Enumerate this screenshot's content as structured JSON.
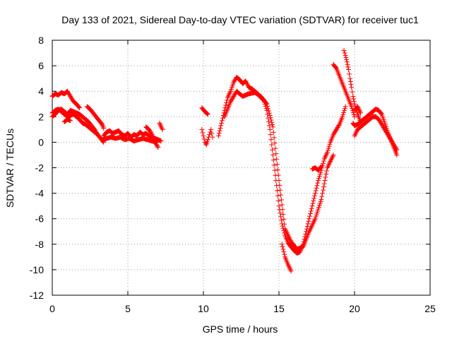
{
  "chart_data": {
    "type": "scatter",
    "title": "Day 133 of 2021, Sidereal Day-to-day VTEC variation (SDTVAR) for receiver tuc1",
    "xlabel": "GPS time / hours",
    "ylabel": "SDTVAR / TECUs",
    "xlim": [
      0,
      25
    ],
    "ylim": [
      -12,
      8
    ],
    "xticks": [
      0,
      5,
      10,
      15,
      20,
      25
    ],
    "yticks": [
      -12,
      -10,
      -8,
      -6,
      -4,
      -2,
      0,
      2,
      4,
      6,
      8
    ],
    "grid": true,
    "marker": "+",
    "series": [
      {
        "name": "SDTVAR",
        "color": "#ff0000",
        "segments": [
          {
            "x": [
              0.0,
              0.2,
              0.4,
              0.6,
              0.8,
              1.0,
              1.2,
              1.4,
              1.6,
              1.8
            ],
            "y": [
              3.6,
              3.8,
              3.7,
              3.9,
              3.8,
              4.0,
              3.6,
              3.2,
              3.0,
              2.7
            ]
          },
          {
            "x": [
              0.0,
              0.2,
              0.4,
              0.6,
              0.8,
              1.0,
              1.2,
              1.4,
              1.6,
              1.8,
              2.0,
              2.2,
              2.4,
              2.6,
              2.8,
              3.0,
              3.2,
              3.4
            ],
            "y": [
              2.0,
              2.2,
              2.5,
              2.6,
              2.4,
              2.2,
              2.5,
              2.4,
              2.3,
              2.2,
              2.0,
              1.8,
              1.6,
              1.3,
              1.0,
              0.6,
              0.3,
              0.0
            ]
          },
          {
            "x": [
              0.0,
              0.2,
              0.4,
              0.6,
              0.8,
              1.0,
              1.2,
              1.4,
              1.6,
              1.8,
              2.0,
              2.2,
              2.4,
              2.6,
              2.8,
              3.0
            ],
            "y": [
              2.3,
              2.5,
              2.6,
              2.4,
              2.2,
              2.0,
              2.1,
              2.2,
              2.0,
              1.8,
              1.5,
              1.4,
              1.2,
              1.0,
              0.8,
              0.6
            ]
          },
          {
            "x": [
              0.8,
              1.0,
              1.2
            ],
            "y": [
              1.6,
              1.8,
              1.7
            ]
          },
          {
            "x": [
              2.3,
              2.5,
              2.7,
              2.9,
              3.1,
              3.3,
              3.4
            ],
            "y": [
              2.8,
              2.6,
              2.3,
              2.0,
              1.7,
              1.4,
              1.1
            ]
          },
          {
            "x": [
              3.4,
              3.6,
              3.8,
              4.0,
              4.2,
              4.4,
              4.6,
              4.8,
              5.0,
              5.2,
              5.4,
              5.6,
              5.8,
              6.0,
              6.2,
              6.4,
              6.6,
              6.8,
              7.0,
              7.2
            ],
            "y": [
              0.5,
              0.8,
              0.9,
              0.7,
              0.8,
              0.9,
              0.6,
              0.5,
              0.7,
              0.4,
              0.6,
              0.5,
              0.8,
              0.6,
              0.7,
              0.5,
              0.4,
              0.3,
              0.2,
              0.1
            ]
          },
          {
            "x": [
              3.3,
              3.6,
              3.9,
              4.2,
              4.5,
              4.8,
              5.1,
              5.4,
              5.7,
              6.0,
              6.3,
              6.6,
              6.9
            ],
            "y": [
              0.2,
              0.3,
              0.4,
              0.3,
              0.4,
              0.2,
              0.3,
              0.1,
              0.2,
              0.3,
              0.2,
              0.1,
              0.0
            ]
          },
          {
            "x": [
              6.2,
              6.4,
              6.6,
              6.8,
              7.0
            ],
            "y": [
              1.2,
              1.0,
              0.6,
              0.0,
              -0.4
            ]
          },
          {
            "x": [
              7.1,
              7.2,
              7.3
            ],
            "y": [
              1.5,
              1.2,
              1.0
            ]
          },
          {
            "x": [
              9.9,
              10.1,
              10.3
            ],
            "y": [
              2.7,
              2.4,
              2.2
            ]
          },
          {
            "x": [
              9.9,
              10.0,
              10.1,
              10.2,
              10.3,
              10.4,
              10.5,
              10.6
            ],
            "y": [
              1.0,
              0.5,
              0.0,
              -0.2,
              0.2,
              0.6,
              1.0,
              0.4
            ]
          },
          {
            "x": [
              11.0,
              11.2,
              11.4,
              11.6,
              11.8,
              12.0,
              12.2,
              12.4,
              12.6,
              12.8,
              13.0,
              13.2,
              13.4,
              13.6,
              13.8,
              14.0,
              14.2,
              14.4,
              14.6,
              14.8,
              15.0,
              15.2,
              15.4,
              15.6,
              15.8,
              16.0,
              16.2,
              16.4,
              16.6,
              16.8,
              17.0,
              17.2,
              17.4,
              17.6,
              17.8,
              18.0,
              18.2,
              18.4,
              18.6,
              18.8,
              19.0,
              19.2,
              19.4
            ],
            "y": [
              0.5,
              1.5,
              2.5,
              3.5,
              4.0,
              4.7,
              5.1,
              4.9,
              4.6,
              4.8,
              4.3,
              4.2,
              4.0,
              3.8,
              3.5,
              3.3,
              2.5,
              1.0,
              -1.0,
              -3.0,
              -5.0,
              -6.4,
              -7.3,
              -7.9,
              -8.2,
              -8.5,
              -8.7,
              -8.6,
              -8.0,
              -7.0,
              -6.0,
              -5.0,
              -4.0,
              -3.0,
              -2.2,
              -1.3,
              -0.8,
              0.0,
              0.6,
              1.0,
              1.4,
              2.0,
              2.8
            ]
          },
          {
            "x": [
              11.4,
              11.8,
              12.2,
              12.6,
              13.0,
              13.4,
              13.8,
              14.2,
              14.6,
              15.0,
              15.4,
              15.8,
              16.2,
              16.6,
              17.0,
              17.4,
              17.8,
              18.2,
              18.6
            ],
            "y": [
              2.0,
              3.2,
              4.0,
              3.6,
              3.8,
              3.9,
              3.6,
              3.0,
              1.2,
              -3.0,
              -6.8,
              -7.8,
              -8.4,
              -8.2,
              -7.0,
              -6.0,
              -4.5,
              -2.0,
              -1.0
            ]
          },
          {
            "x": [
              15.2,
              15.4,
              15.6,
              15.8
            ],
            "y": [
              -8.0,
              -9.0,
              -9.6,
              -10.1
            ]
          },
          {
            "x": [
              17.2,
              17.4,
              17.6,
              17.8
            ],
            "y": [
              -2.1,
              -2.0,
              -2.2,
              -1.9
            ]
          },
          {
            "x": [
              18.6,
              18.8,
              19.0,
              19.2,
              19.4,
              19.6,
              19.8,
              20.0
            ],
            "y": [
              6.1,
              5.8,
              5.2,
              4.6,
              4.0,
              3.4,
              2.8,
              2.0
            ]
          },
          {
            "x": [
              19.3,
              19.4,
              19.5,
              19.6,
              19.7,
              19.8,
              19.9,
              20.0,
              20.2,
              20.4
            ],
            "y": [
              7.2,
              6.8,
              6.3,
              5.7,
              5.0,
              4.3,
              3.6,
              3.0,
              2.2,
              1.6
            ]
          },
          {
            "x": [
              19.9,
              20.0,
              20.2,
              20.4,
              20.6,
              20.8,
              21.0,
              21.2,
              21.4,
              21.6,
              21.8,
              22.0,
              22.2,
              22.4,
              22.6,
              22.8
            ],
            "y": [
              1.5,
              1.3,
              1.4,
              1.6,
              1.8,
              2.0,
              2.2,
              2.4,
              2.6,
              2.5,
              2.2,
              1.5,
              0.8,
              0.2,
              -0.4,
              -1.0
            ]
          },
          {
            "x": [
              20.0,
              20.2,
              20.4,
              20.6,
              20.8,
              21.0,
              21.2,
              21.4,
              21.6,
              21.8,
              22.0,
              22.2,
              22.4,
              22.6,
              22.8
            ],
            "y": [
              0.5,
              1.0,
              1.2,
              1.4,
              1.6,
              1.8,
              2.0,
              2.0,
              1.8,
              1.4,
              1.0,
              0.6,
              0.2,
              -0.2,
              -0.6
            ]
          },
          {
            "x": [
              20.0,
              20.2,
              20.4
            ],
            "y": [
              2.5,
              2.8,
              2.3
            ]
          }
        ]
      }
    ]
  }
}
